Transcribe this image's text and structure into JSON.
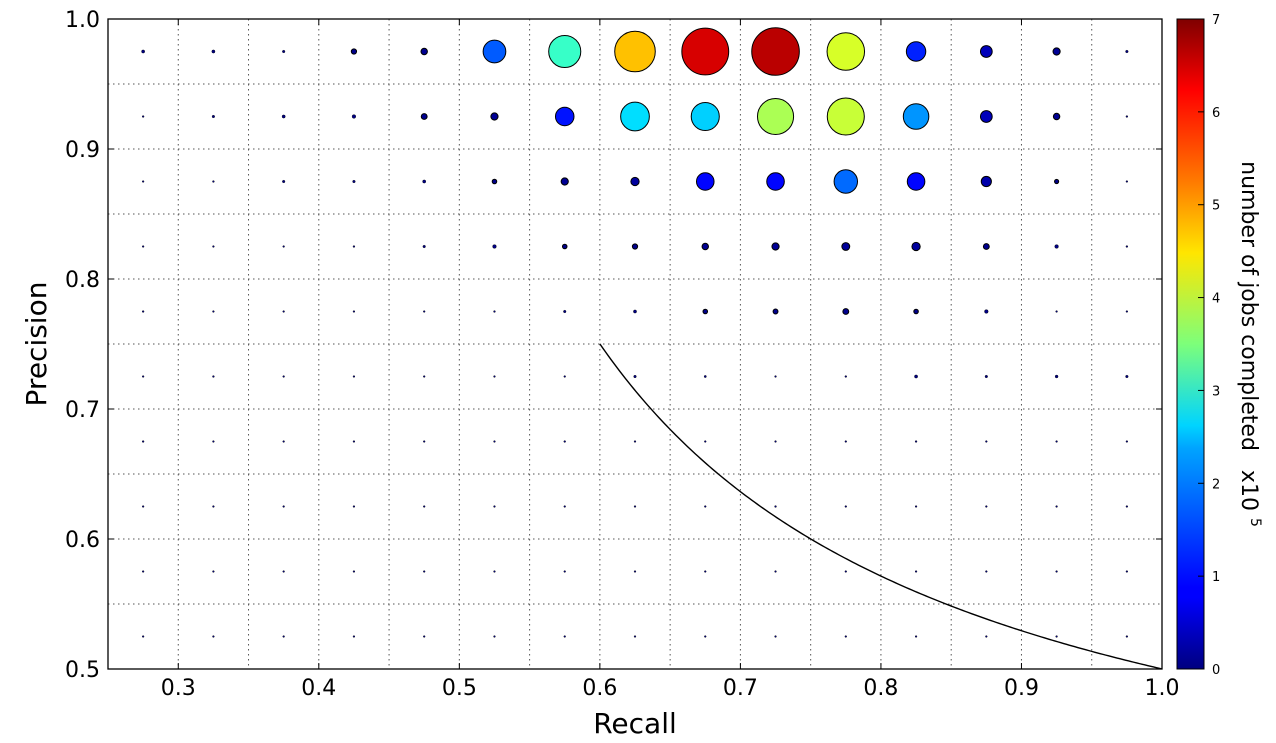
{
  "chart_data": {
    "type": "scatter",
    "title": "",
    "xlabel": "Recall",
    "ylabel": "Precision",
    "xlim": [
      0.25,
      1.0
    ],
    "ylim": [
      0.5,
      1.0
    ],
    "xticks": [
      "0.3",
      "0.4",
      "0.5",
      "0.6",
      "0.7",
      "0.8",
      "0.9",
      "1.0"
    ],
    "yticks": [
      "0.5",
      "0.6",
      "0.7",
      "0.8",
      "0.9",
      "1.0"
    ],
    "grid": true,
    "colorbar": {
      "label": "number of jobs completed",
      "multiplier_base": "x10",
      "multiplier_exp": "5",
      "range": [
        0,
        7
      ],
      "ticks": [
        "0",
        "1",
        "2",
        "3",
        "4",
        "5",
        "6",
        "7"
      ],
      "colormap": "jet"
    },
    "size_encodes": "number of jobs completed",
    "points_note": "value in units of 1e5 jobs",
    "points": [
      {
        "x": 0.275,
        "y": 0.975,
        "v": 0.03
      },
      {
        "x": 0.325,
        "y": 0.975,
        "v": 0.03
      },
      {
        "x": 0.375,
        "y": 0.975,
        "v": 0.02
      },
      {
        "x": 0.425,
        "y": 0.975,
        "v": 0.08
      },
      {
        "x": 0.475,
        "y": 0.975,
        "v": 0.12
      },
      {
        "x": 0.525,
        "y": 0.975,
        "v": 1.5
      },
      {
        "x": 0.575,
        "y": 0.975,
        "v": 3.0
      },
      {
        "x": 0.625,
        "y": 0.975,
        "v": 4.8
      },
      {
        "x": 0.675,
        "y": 0.975,
        "v": 6.4
      },
      {
        "x": 0.725,
        "y": 0.975,
        "v": 6.6
      },
      {
        "x": 0.775,
        "y": 0.975,
        "v": 4.1
      },
      {
        "x": 0.825,
        "y": 0.975,
        "v": 1.1
      },
      {
        "x": 0.875,
        "y": 0.975,
        "v": 0.4
      },
      {
        "x": 0.925,
        "y": 0.975,
        "v": 0.15
      },
      {
        "x": 0.975,
        "y": 0.975,
        "v": 0.02
      },
      {
        "x": 0.275,
        "y": 0.925,
        "v": 0.01
      },
      {
        "x": 0.325,
        "y": 0.925,
        "v": 0.02
      },
      {
        "x": 0.375,
        "y": 0.925,
        "v": 0.03
      },
      {
        "x": 0.425,
        "y": 0.925,
        "v": 0.04
      },
      {
        "x": 0.475,
        "y": 0.925,
        "v": 0.1
      },
      {
        "x": 0.525,
        "y": 0.925,
        "v": 0.15
      },
      {
        "x": 0.575,
        "y": 0.925,
        "v": 1.0
      },
      {
        "x": 0.625,
        "y": 0.925,
        "v": 2.4
      },
      {
        "x": 0.675,
        "y": 0.925,
        "v": 2.3
      },
      {
        "x": 0.725,
        "y": 0.925,
        "v": 3.8
      },
      {
        "x": 0.775,
        "y": 0.925,
        "v": 4.0
      },
      {
        "x": 0.825,
        "y": 0.925,
        "v": 1.9
      },
      {
        "x": 0.875,
        "y": 0.925,
        "v": 0.4
      },
      {
        "x": 0.925,
        "y": 0.925,
        "v": 0.12
      },
      {
        "x": 0.975,
        "y": 0.925,
        "v": 0.01
      },
      {
        "x": 0.275,
        "y": 0.875,
        "v": 0.005
      },
      {
        "x": 0.325,
        "y": 0.875,
        "v": 0.01
      },
      {
        "x": 0.375,
        "y": 0.875,
        "v": 0.02
      },
      {
        "x": 0.425,
        "y": 0.875,
        "v": 0.02
      },
      {
        "x": 0.475,
        "y": 0.875,
        "v": 0.03
      },
      {
        "x": 0.525,
        "y": 0.875,
        "v": 0.06
      },
      {
        "x": 0.575,
        "y": 0.875,
        "v": 0.15
      },
      {
        "x": 0.625,
        "y": 0.875,
        "v": 0.2
      },
      {
        "x": 0.675,
        "y": 0.875,
        "v": 0.9
      },
      {
        "x": 0.725,
        "y": 0.875,
        "v": 0.9
      },
      {
        "x": 0.775,
        "y": 0.875,
        "v": 1.6
      },
      {
        "x": 0.825,
        "y": 0.875,
        "v": 0.9
      },
      {
        "x": 0.875,
        "y": 0.875,
        "v": 0.3
      },
      {
        "x": 0.925,
        "y": 0.875,
        "v": 0.05
      },
      {
        "x": 0.975,
        "y": 0.875,
        "v": 0.005
      },
      {
        "x": 0.275,
        "y": 0.825,
        "v": 0.002
      },
      {
        "x": 0.325,
        "y": 0.825,
        "v": 0.003
      },
      {
        "x": 0.375,
        "y": 0.825,
        "v": 0.008
      },
      {
        "x": 0.425,
        "y": 0.825,
        "v": 0.01
      },
      {
        "x": 0.475,
        "y": 0.825,
        "v": 0.02
      },
      {
        "x": 0.525,
        "y": 0.825,
        "v": 0.04
      },
      {
        "x": 0.575,
        "y": 0.825,
        "v": 0.06
      },
      {
        "x": 0.625,
        "y": 0.825,
        "v": 0.08
      },
      {
        "x": 0.675,
        "y": 0.825,
        "v": 0.12
      },
      {
        "x": 0.725,
        "y": 0.825,
        "v": 0.15
      },
      {
        "x": 0.775,
        "y": 0.825,
        "v": 0.18
      },
      {
        "x": 0.825,
        "y": 0.825,
        "v": 0.2
      },
      {
        "x": 0.875,
        "y": 0.825,
        "v": 0.1
      },
      {
        "x": 0.925,
        "y": 0.825,
        "v": 0.04
      },
      {
        "x": 0.975,
        "y": 0.825,
        "v": 0.01
      },
      {
        "x": 0.275,
        "y": 0.775,
        "v": 0.01
      },
      {
        "x": 0.325,
        "y": 0.775,
        "v": 0.002
      },
      {
        "x": 0.375,
        "y": 0.775,
        "v": 0.005
      },
      {
        "x": 0.425,
        "y": 0.775,
        "v": 0.004
      },
      {
        "x": 0.475,
        "y": 0.775,
        "v": 0.008
      },
      {
        "x": 0.525,
        "y": 0.775,
        "v": 0.01
      },
      {
        "x": 0.575,
        "y": 0.775,
        "v": 0.02
      },
      {
        "x": 0.625,
        "y": 0.775,
        "v": 0.03
      },
      {
        "x": 0.675,
        "y": 0.775,
        "v": 0.06
      },
      {
        "x": 0.725,
        "y": 0.775,
        "v": 0.07
      },
      {
        "x": 0.775,
        "y": 0.775,
        "v": 0.1
      },
      {
        "x": 0.825,
        "y": 0.775,
        "v": 0.06
      },
      {
        "x": 0.875,
        "y": 0.775,
        "v": 0.04
      },
      {
        "x": 0.925,
        "y": 0.775,
        "v": 0.008
      },
      {
        "x": 0.975,
        "y": 0.775,
        "v": 0.008
      },
      {
        "x": 0.275,
        "y": 0.725,
        "v": 0.001
      },
      {
        "x": 0.325,
        "y": 0.725,
        "v": 0.01
      },
      {
        "x": 0.375,
        "y": 0.725,
        "v": 0.001
      },
      {
        "x": 0.425,
        "y": 0.725,
        "v": 0.001
      },
      {
        "x": 0.475,
        "y": 0.725,
        "v": 0.005
      },
      {
        "x": 0.525,
        "y": 0.725,
        "v": 0.001
      },
      {
        "x": 0.575,
        "y": 0.725,
        "v": 0.001
      },
      {
        "x": 0.625,
        "y": 0.725,
        "v": 0.02
      },
      {
        "x": 0.675,
        "y": 0.725,
        "v": 0.015
      },
      {
        "x": 0.725,
        "y": 0.725,
        "v": 0.008
      },
      {
        "x": 0.775,
        "y": 0.725,
        "v": 0.01
      },
      {
        "x": 0.825,
        "y": 0.725,
        "v": 0.03
      },
      {
        "x": 0.875,
        "y": 0.725,
        "v": 0.02
      },
      {
        "x": 0.925,
        "y": 0.725,
        "v": 0.025
      },
      {
        "x": 0.975,
        "y": 0.725,
        "v": 0.02
      },
      {
        "x": 0.275,
        "y": 0.675,
        "v": 0.01
      },
      {
        "x": 0.325,
        "y": 0.675,
        "v": 0.001
      },
      {
        "x": 0.375,
        "y": 0.675,
        "v": 0.001
      },
      {
        "x": 0.425,
        "y": 0.675,
        "v": 0.001
      },
      {
        "x": 0.475,
        "y": 0.675,
        "v": 0.001
      },
      {
        "x": 0.525,
        "y": 0.675,
        "v": 0.005
      },
      {
        "x": 0.575,
        "y": 0.675,
        "v": 0.01
      },
      {
        "x": 0.625,
        "y": 0.675,
        "v": 0.001
      },
      {
        "x": 0.675,
        "y": 0.675,
        "v": 0.001
      },
      {
        "x": 0.725,
        "y": 0.675,
        "v": 0.001
      },
      {
        "x": 0.775,
        "y": 0.675,
        "v": 0.003
      },
      {
        "x": 0.825,
        "y": 0.675,
        "v": 0.01
      },
      {
        "x": 0.875,
        "y": 0.675,
        "v": 0.005
      },
      {
        "x": 0.925,
        "y": 0.675,
        "v": 0.001
      },
      {
        "x": 0.975,
        "y": 0.675,
        "v": 0.001
      },
      {
        "x": 0.275,
        "y": 0.625,
        "v": 0.0005
      },
      {
        "x": 0.325,
        "y": 0.625,
        "v": 0.0005
      },
      {
        "x": 0.375,
        "y": 0.625,
        "v": 0.0005
      },
      {
        "x": 0.425,
        "y": 0.625,
        "v": 0.0005
      },
      {
        "x": 0.475,
        "y": 0.625,
        "v": 0.0005
      },
      {
        "x": 0.525,
        "y": 0.625,
        "v": 0.0005
      },
      {
        "x": 0.575,
        "y": 0.625,
        "v": 0.0005
      },
      {
        "x": 0.625,
        "y": 0.625,
        "v": 0.0005
      },
      {
        "x": 0.675,
        "y": 0.625,
        "v": 0.0005
      },
      {
        "x": 0.725,
        "y": 0.625,
        "v": 0.01
      },
      {
        "x": 0.775,
        "y": 0.625,
        "v": 0.002
      },
      {
        "x": 0.825,
        "y": 0.625,
        "v": 0.002
      },
      {
        "x": 0.875,
        "y": 0.625,
        "v": 0.002
      },
      {
        "x": 0.925,
        "y": 0.625,
        "v": 0.003
      },
      {
        "x": 0.975,
        "y": 0.625,
        "v": 0.0005
      },
      {
        "x": 0.275,
        "y": 0.575,
        "v": 0.0005
      },
      {
        "x": 0.325,
        "y": 0.575,
        "v": 0.0005
      },
      {
        "x": 0.375,
        "y": 0.575,
        "v": 0.0005
      },
      {
        "x": 0.425,
        "y": 0.575,
        "v": 0.005
      },
      {
        "x": 0.475,
        "y": 0.575,
        "v": 0.0005
      },
      {
        "x": 0.525,
        "y": 0.575,
        "v": 0.0005
      },
      {
        "x": 0.575,
        "y": 0.575,
        "v": 0.0005
      },
      {
        "x": 0.625,
        "y": 0.575,
        "v": 0.0005
      },
      {
        "x": 0.675,
        "y": 0.575,
        "v": 0.0005
      },
      {
        "x": 0.725,
        "y": 0.575,
        "v": 0.0005
      },
      {
        "x": 0.775,
        "y": 0.575,
        "v": 0.003
      },
      {
        "x": 0.825,
        "y": 0.575,
        "v": 0.003
      },
      {
        "x": 0.875,
        "y": 0.575,
        "v": 0.0005
      },
      {
        "x": 0.925,
        "y": 0.575,
        "v": 0.0005
      },
      {
        "x": 0.975,
        "y": 0.575,
        "v": 0.0005
      },
      {
        "x": 0.275,
        "y": 0.525,
        "v": 0.0005
      },
      {
        "x": 0.325,
        "y": 0.525,
        "v": 0.0005
      },
      {
        "x": 0.375,
        "y": 0.525,
        "v": 0.0005
      },
      {
        "x": 0.425,
        "y": 0.525,
        "v": 0.0005
      },
      {
        "x": 0.475,
        "y": 0.525,
        "v": 0.0005
      },
      {
        "x": 0.525,
        "y": 0.525,
        "v": 0.0005
      },
      {
        "x": 0.575,
        "y": 0.525,
        "v": 0.0005
      },
      {
        "x": 0.625,
        "y": 0.525,
        "v": 0.0005
      },
      {
        "x": 0.675,
        "y": 0.525,
        "v": 0.0005
      },
      {
        "x": 0.725,
        "y": 0.525,
        "v": 0.0005
      },
      {
        "x": 0.775,
        "y": 0.525,
        "v": 0.0005
      },
      {
        "x": 0.825,
        "y": 0.525,
        "v": 0.0005
      },
      {
        "x": 0.875,
        "y": 0.525,
        "v": 0.003
      },
      {
        "x": 0.925,
        "y": 0.525,
        "v": 0.0005
      },
      {
        "x": 0.975,
        "y": 0.525,
        "v": 0.0005
      }
    ],
    "curve": {
      "type": "line",
      "relation": "F1 = 0.667 (harmonic mean of precision and recall)",
      "f1": 0.6667,
      "x_range": [
        0.6,
        1.0
      ]
    }
  }
}
